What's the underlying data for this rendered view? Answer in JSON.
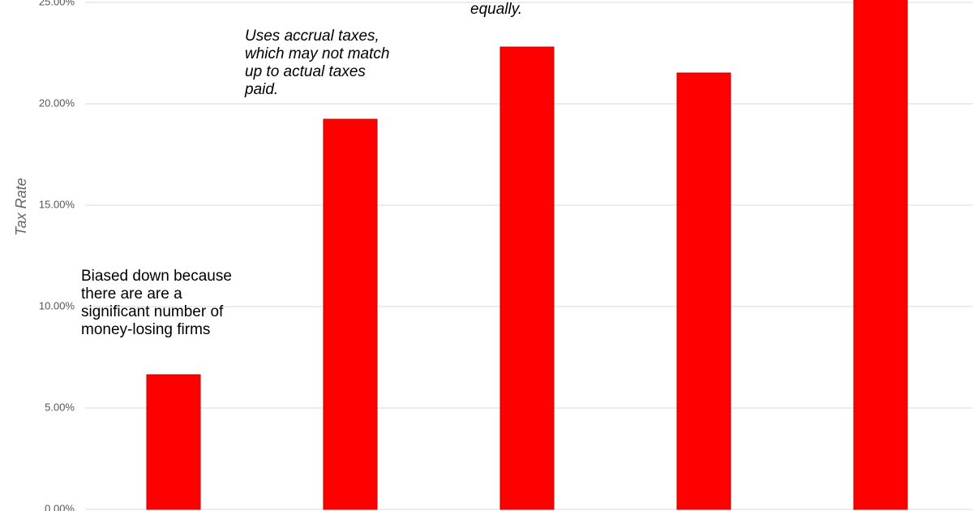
{
  "chart_data": {
    "type": "bar",
    "y_label": "Tax Rate",
    "categories": [
      null,
      null,
      null,
      null,
      null
    ],
    "values": [
      6.64,
      19.24,
      22.8,
      21.52,
      25.5
    ],
    "color": "#ff0000",
    "ylim": [
      -0.08,
      25.12
    ],
    "yticks": [
      {
        "value": 0,
        "label": "0.00%"
      },
      {
        "value": 5,
        "label": "5.00%"
      },
      {
        "value": 10,
        "label": "10.00%"
      },
      {
        "value": 15,
        "label": "15.00%"
      },
      {
        "value": 20,
        "label": "20.00%"
      },
      {
        "value": 25,
        "label": "25.00%"
      }
    ],
    "grid": true,
    "annotations": [
      {
        "lines": [
          "Biased down because",
          "there are are a",
          "significant number of",
          "money-losing firms"
        ]
      },
      {
        "lines": [
          "Uses accrual taxes,",
          "which may not match",
          "up to actual taxes",
          "paid."
        ]
      },
      {
        "lines": [
          "equally."
        ]
      }
    ]
  }
}
